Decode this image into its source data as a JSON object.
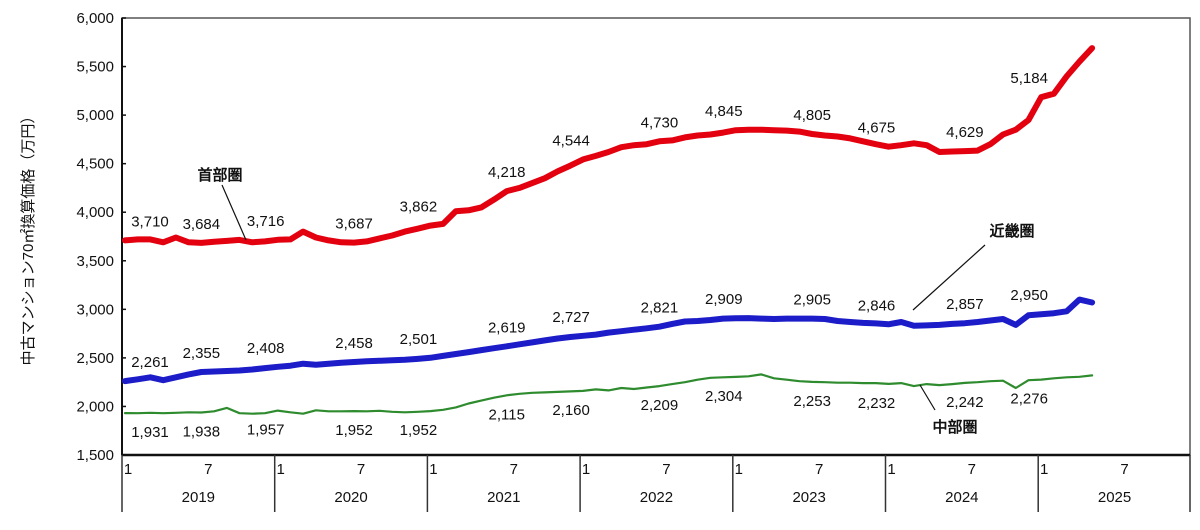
{
  "chart_data": {
    "type": "line",
    "title": "",
    "ylabel": "中古マンション70㎡換算価格（万円）",
    "xlabel": "",
    "ylim": [
      1500,
      6000
    ],
    "yticks": [
      "6,000",
      "5,500",
      "5,000",
      "4,500",
      "4,000",
      "3,500",
      "3,000",
      "2,500",
      "2,000",
      "1,500"
    ],
    "ytick_values": [
      6000,
      5500,
      5000,
      4500,
      4000,
      3500,
      3000,
      2500,
      2000,
      1500
    ],
    "years": [
      "2019",
      "2020",
      "2021",
      "2022",
      "2023",
      "2024",
      "2025"
    ],
    "month_ticks": [
      "1",
      "7"
    ],
    "x_start": "2019-01",
    "x_end": "2025-05",
    "grid": false,
    "series": [
      {
        "name": "首部圏",
        "color": "#e3000f",
        "values": [
          3710,
          3720,
          3720,
          3690,
          3740,
          3690,
          3684,
          3695,
          3705,
          3715,
          3690,
          3700,
          3716,
          3720,
          3800,
          3740,
          3710,
          3690,
          3687,
          3700,
          3730,
          3760,
          3800,
          3830,
          3862,
          3880,
          4010,
          4020,
          4050,
          4130,
          4218,
          4250,
          4300,
          4350,
          4420,
          4480,
          4544,
          4580,
          4620,
          4670,
          4690,
          4700,
          4730,
          4740,
          4770,
          4790,
          4800,
          4820,
          4845,
          4850,
          4850,
          4845,
          4840,
          4830,
          4805,
          4790,
          4780,
          4760,
          4730,
          4700,
          4675,
          4690,
          4710,
          4690,
          4620,
          4625,
          4629,
          4635,
          4700,
          4800,
          4850,
          4950,
          5184,
          5220,
          5400,
          5550,
          5690
        ],
        "labels": [
          "3,710",
          "3,684",
          "3,716",
          "3,687",
          "3,862",
          "4,218",
          "4,544",
          "4,730",
          "4,845",
          "4,805",
          "4,675",
          "4,629",
          "5,184"
        ]
      },
      {
        "name": "近畿圏",
        "color": "#1c1cc8",
        "values": [
          2261,
          2280,
          2300,
          2270,
          2300,
          2330,
          2355,
          2360,
          2365,
          2370,
          2380,
          2395,
          2408,
          2420,
          2440,
          2430,
          2440,
          2450,
          2458,
          2465,
          2470,
          2475,
          2480,
          2490,
          2501,
          2520,
          2540,
          2560,
          2580,
          2600,
          2619,
          2640,
          2660,
          2680,
          2700,
          2715,
          2727,
          2740,
          2760,
          2775,
          2790,
          2805,
          2821,
          2850,
          2875,
          2880,
          2890,
          2905,
          2909,
          2910,
          2905,
          2900,
          2905,
          2905,
          2905,
          2900,
          2880,
          2870,
          2860,
          2855,
          2846,
          2870,
          2830,
          2835,
          2840,
          2850,
          2857,
          2870,
          2885,
          2900,
          2840,
          2940,
          2950,
          2960,
          2980,
          3100,
          3070
        ],
        "labels": [
          "2,261",
          "2,355",
          "2,408",
          "2,458",
          "2,501",
          "2,619",
          "2,727",
          "2,821",
          "2,909",
          "2,905",
          "2,846",
          "2,857",
          "2,950"
        ]
      },
      {
        "name": "中部圏",
        "color": "#2e8b2e",
        "values": [
          1931,
          1930,
          1935,
          1930,
          1935,
          1940,
          1938,
          1950,
          1985,
          1930,
          1925,
          1930,
          1957,
          1940,
          1925,
          1960,
          1950,
          1950,
          1952,
          1950,
          1955,
          1945,
          1940,
          1945,
          1952,
          1965,
          1990,
          2030,
          2060,
          2090,
          2115,
          2130,
          2140,
          2145,
          2150,
          2155,
          2160,
          2175,
          2165,
          2190,
          2180,
          2195,
          2209,
          2230,
          2250,
          2275,
          2295,
          2300,
          2304,
          2310,
          2330,
          2290,
          2275,
          2260,
          2253,
          2250,
          2245,
          2245,
          2240,
          2240,
          2232,
          2240,
          2210,
          2230,
          2220,
          2230,
          2242,
          2250,
          2260,
          2265,
          2190,
          2270,
          2276,
          2290,
          2300,
          2305,
          2320
        ],
        "labels": [
          "1,931",
          "1,938",
          "1,957",
          "1,952",
          "1,952",
          "2,115",
          "2,160",
          "2,209",
          "2,304",
          "2,253",
          "2,232",
          "2,242",
          "2,276"
        ]
      }
    ]
  }
}
